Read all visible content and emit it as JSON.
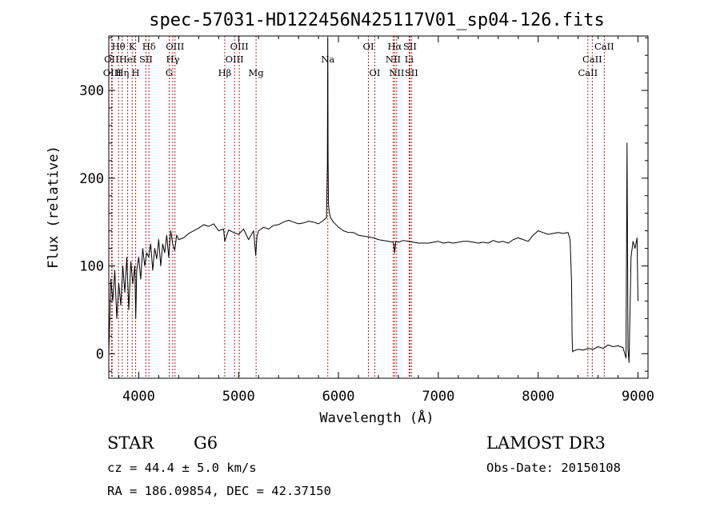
{
  "colors": {
    "line_marker": "#b22222",
    "spectrum": "#000000"
  },
  "chart_data": {
    "type": "line",
    "title": "spec-57031-HD122456N425117V01_sp04-126.fits",
    "xlabel": "Wavelength (Å)",
    "ylabel": "Flux (relative)",
    "xlim": [
      3700,
      9100
    ],
    "ylim": [
      -28,
      362
    ],
    "x_ticks": [
      4000,
      5000,
      6000,
      7000,
      8000,
      9000
    ],
    "y_ticks": [
      0,
      100,
      200,
      300
    ],
    "series": [
      {
        "name": "spectrum",
        "x": [
          3700,
          3720,
          3740,
          3760,
          3780,
          3800,
          3820,
          3840,
          3860,
          3880,
          3900,
          3920,
          3940,
          3960,
          3970,
          3980,
          4000,
          4020,
          4040,
          4060,
          4080,
          4100,
          4120,
          4140,
          4160,
          4180,
          4200,
          4220,
          4240,
          4260,
          4280,
          4300,
          4320,
          4340,
          4360,
          4380,
          4400,
          4450,
          4500,
          4550,
          4600,
          4650,
          4700,
          4750,
          4800,
          4850,
          4861,
          4900,
          4950,
          5000,
          5050,
          5100,
          5150,
          5172,
          5183,
          5200,
          5250,
          5300,
          5350,
          5400,
          5450,
          5500,
          5550,
          5600,
          5650,
          5700,
          5750,
          5800,
          5850,
          5880,
          5889,
          5893,
          5896,
          5900,
          5910,
          5920,
          5950,
          6000,
          6050,
          6100,
          6150,
          6200,
          6250,
          6300,
          6350,
          6400,
          6450,
          6500,
          6550,
          6563,
          6575,
          6600,
          6650,
          6700,
          6750,
          6800,
          6850,
          6900,
          6950,
          7000,
          7050,
          7100,
          7150,
          7200,
          7250,
          7300,
          7350,
          7400,
          7450,
          7500,
          7550,
          7600,
          7650,
          7700,
          7750,
          7800,
          7850,
          7900,
          7950,
          8000,
          8050,
          8100,
          8150,
          8200,
          8250,
          8300,
          8320,
          8335,
          8340,
          8345,
          8350,
          8400,
          8450,
          8500,
          8550,
          8600,
          8650,
          8700,
          8750,
          8800,
          8850,
          8880,
          8890,
          8900,
          8910,
          8930,
          8950,
          8970,
          8990,
          9000
        ],
        "values": [
          0,
          85,
          60,
          95,
          40,
          80,
          55,
          100,
          70,
          110,
          50,
          105,
          80,
          100,
          40,
          95,
          110,
          85,
          120,
          100,
          115,
          110,
          125,
          95,
          120,
          108,
          130,
          100,
          125,
          115,
          135,
          110,
          140,
          125,
          118,
          135,
          130,
          132,
          137,
          140,
          143,
          147,
          145,
          148,
          140,
          142,
          128,
          141,
          138,
          136,
          142,
          130,
          140,
          112,
          133,
          140,
          144,
          142,
          146,
          147,
          150,
          152,
          150,
          148,
          149,
          151,
          150,
          148,
          152,
          155,
          215,
          360,
          220,
          170,
          160,
          155,
          150,
          144,
          140,
          138,
          138,
          135,
          134,
          133,
          132,
          130,
          129,
          128,
          127,
          115,
          128,
          127,
          129,
          128,
          127,
          126,
          126,
          126,
          127,
          128,
          126,
          127,
          126,
          127,
          128,
          128,
          127,
          126,
          127,
          126,
          129,
          127,
          128,
          126,
          130,
          132,
          130,
          128,
          135,
          140,
          138,
          136,
          137,
          138,
          137,
          138,
          130,
          80,
          20,
          2,
          3,
          5,
          4,
          6,
          5,
          8,
          6,
          10,
          8,
          9,
          7,
          -5,
          240,
          5,
          -10,
          110,
          128,
          120,
          132,
          60
        ]
      }
    ],
    "emission_lines": [
      {
        "label": "Hθ",
        "x": 3797,
        "row": 1
      },
      {
        "label": "OII",
        "x": 3727,
        "row": 2
      },
      {
        "label": "OIII",
        "x": 3734,
        "row": 3
      },
      {
        "label": "K",
        "x": 3934,
        "row": 1
      },
      {
        "label": "HeI",
        "x": 3889,
        "row": 2
      },
      {
        "label": "Hη",
        "x": 3835,
        "row": 3
      },
      {
        "label": "SII",
        "x": 4072,
        "row": 2
      },
      {
        "label": "H",
        "x": 3969,
        "row": 3
      },
      {
        "label": "Hδ",
        "x": 4102,
        "row": 1
      },
      {
        "label": "OIII",
        "x": 4363,
        "row": 1
      },
      {
        "label": "Hγ",
        "x": 4341,
        "row": 2
      },
      {
        "label": "G",
        "x": 4305,
        "row": 3
      },
      {
        "label": "OIII",
        "x": 5007,
        "row": 1
      },
      {
        "label": "OIII",
        "x": 4959,
        "row": 2
      },
      {
        "label": "Hβ",
        "x": 4861,
        "row": 3
      },
      {
        "label": "Mg",
        "x": 5175,
        "row": 3
      },
      {
        "label": "Na",
        "x": 5893,
        "row": 2
      },
      {
        "label": "OI",
        "x": 6300,
        "row": 1
      },
      {
        "label": "OI",
        "x": 6364,
        "row": 3
      },
      {
        "label": "Hα",
        "x": 6563,
        "row": 1
      },
      {
        "label": "SII",
        "x": 6716,
        "row": 1
      },
      {
        "label": "NII",
        "x": 6548,
        "row": 2
      },
      {
        "label": "Li",
        "x": 6708,
        "row": 2
      },
      {
        "label": "NII",
        "x": 6583,
        "row": 3
      },
      {
        "label": "SII",
        "x": 6731,
        "row": 3
      },
      {
        "label": "CaII",
        "x": 8662,
        "row": 1
      },
      {
        "label": "CaII",
        "x": 8542,
        "row": 2
      },
      {
        "label": "CaII",
        "x": 8498,
        "row": 3
      }
    ]
  },
  "footer": {
    "object_type": "STAR",
    "subclass": "G6",
    "survey": "LAMOST DR3",
    "redshift_line": "cz = 44.4 ± 5.0 km/s",
    "obs_date_line": "Obs-Date: 20150108",
    "coords_line": "RA = 186.09854, DEC =  42.37150"
  }
}
